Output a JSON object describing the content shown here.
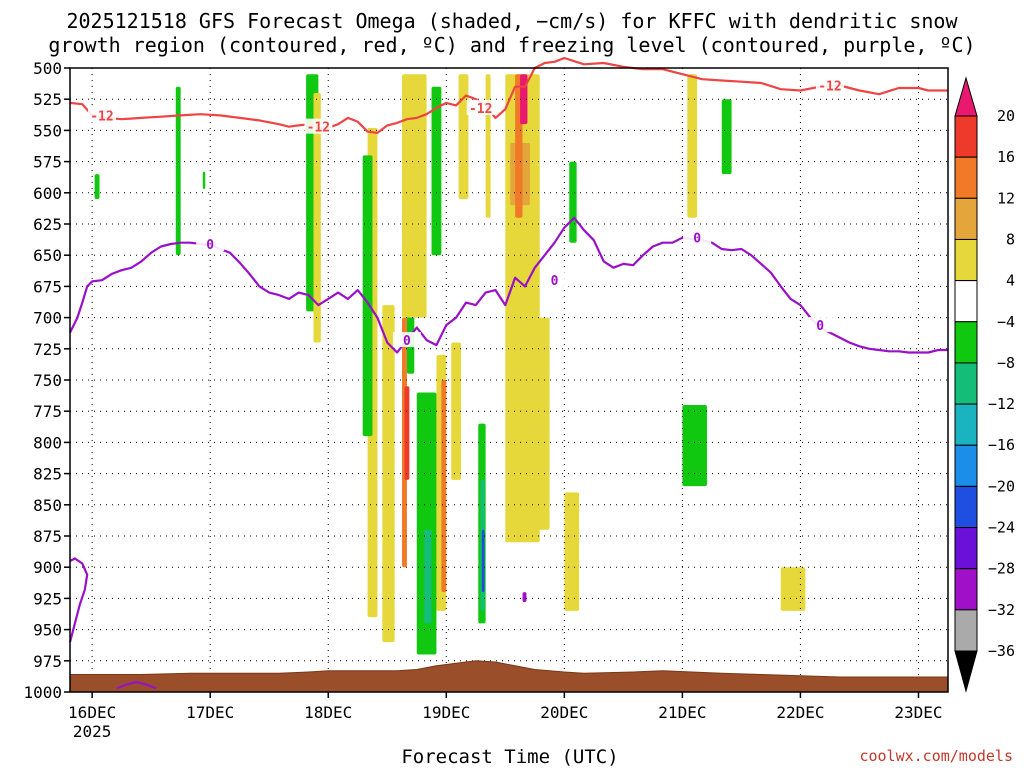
{
  "chart_data": {
    "type": "heatmap",
    "title_lines": [
      "2025121518 GFS Forecast Omega (shaded, −cm/s) for KFFC with dendritic snow",
      "growth region (contoured, red, ºC) and freezing level (contoured, purple, ºC)"
    ],
    "xlabel": "Forecast Time (UTC)",
    "credit": "coolwx.com/models",
    "x_ticks": [
      {
        "label": "16DEC",
        "sub": "2025",
        "t": 0
      },
      {
        "label": "17DEC",
        "t": 24
      },
      {
        "label": "18DEC",
        "t": 48
      },
      {
        "label": "19DEC",
        "t": 72
      },
      {
        "label": "20DEC",
        "t": 96
      },
      {
        "label": "21DEC",
        "t": 120
      },
      {
        "label": "22DEC",
        "t": 144
      },
      {
        "label": "23DEC",
        "t": 168
      }
    ],
    "x_range_hours": [
      -4.5,
      174
    ],
    "y_ticks": [
      500,
      525,
      550,
      575,
      600,
      625,
      650,
      675,
      700,
      725,
      750,
      775,
      800,
      825,
      850,
      875,
      900,
      925,
      950,
      975,
      1000
    ],
    "y_range_hpa": [
      500,
      1000
    ],
    "grid": true,
    "colorbar": {
      "ticks": [
        "20",
        "16",
        "12",
        "8",
        "4",
        "−4",
        "−8",
        "−12",
        "−16",
        "−20",
        "−24",
        "−28",
        "−32",
        "−36"
      ],
      "colors": [
        "#e8196e",
        "#ee3a2a",
        "#f07a28",
        "#e4a53a",
        "#e6d83a",
        "#ffffff",
        "#10c810",
        "#14be78",
        "#19b4c0",
        "#1a8ee8",
        "#1e4fe0",
        "#6a10d8",
        "#a010c8",
        "#aaaaaa"
      ]
    },
    "series": [
      {
        "name": "-12",
        "color": "#ee4444",
        "label": "-12",
        "t": [
          -4.5,
          -2,
          0,
          3,
          6,
          10,
          14,
          18,
          22,
          26,
          30,
          34,
          38,
          40,
          42,
          44,
          46,
          48,
          50,
          52,
          54,
          56,
          58,
          60,
          62,
          64,
          66,
          68,
          70,
          72,
          74,
          76,
          78,
          80,
          82,
          84,
          86,
          88,
          90,
          92,
          94,
          96,
          100,
          104,
          108,
          112,
          116,
          120,
          124,
          128,
          132,
          136,
          140,
          144,
          148,
          152,
          156,
          160,
          164,
          168,
          170,
          174
        ],
        "p": [
          528,
          529,
          538,
          540,
          541,
          540,
          539,
          538,
          537,
          538,
          540,
          542,
          545,
          547,
          546,
          545,
          548,
          548,
          545,
          540,
          543,
          551,
          552,
          546,
          544,
          541,
          540,
          537,
          532,
          528,
          530,
          522,
          525,
          530,
          540,
          533,
          515,
          515,
          500,
          496,
          495,
          492,
          497,
          496,
          499,
          501,
          501,
          505,
          509,
          510,
          511,
          512,
          517,
          518,
          515,
          514,
          518,
          521,
          516,
          516,
          518,
          518
        ]
      },
      {
        "name": "0",
        "color": "#9a10c8",
        "label": "0",
        "t": [
          -4.5,
          -3,
          -2,
          -1,
          0,
          2,
          4,
          6,
          8,
          10,
          12,
          14,
          16,
          18,
          20,
          22,
          24,
          26,
          28,
          30,
          32,
          34,
          36,
          38,
          40,
          42,
          44,
          46,
          48,
          50,
          52,
          54,
          56,
          58,
          60,
          62,
          64,
          66,
          68,
          70,
          72,
          74,
          76,
          78,
          80,
          82,
          84,
          86,
          88,
          90,
          92,
          94,
          96,
          98,
          100,
          102,
          104,
          106,
          108,
          110,
          112,
          114,
          116,
          118,
          120,
          122,
          124,
          126,
          128,
          130,
          132,
          134,
          136,
          138,
          140,
          142,
          144,
          146,
          148,
          150,
          152,
          154,
          156,
          158,
          160,
          162,
          164,
          166,
          168,
          170,
          172,
          174
        ],
        "p": [
          712,
          700,
          688,
          675,
          671,
          670,
          665,
          662,
          660,
          655,
          648,
          643,
          641,
          640,
          640,
          641,
          642,
          645,
          648,
          656,
          665,
          675,
          680,
          682,
          685,
          680,
          682,
          690,
          685,
          680,
          685,
          678,
          688,
          700,
          720,
          728,
          718,
          708,
          718,
          722,
          706,
          700,
          688,
          690,
          680,
          678,
          690,
          668,
          675,
          660,
          650,
          640,
          628,
          620,
          630,
          638,
          655,
          660,
          657,
          658,
          650,
          643,
          640,
          640,
          636,
          637,
          638,
          640,
          645,
          646,
          645,
          650,
          657,
          664,
          675,
          685,
          690,
          700,
          708,
          712,
          716,
          720,
          723,
          725,
          726,
          727,
          727,
          728,
          728,
          728,
          726,
          726
        ]
      },
      {
        "name": "0",
        "color": "#9a10c8",
        "label": "",
        "t": [
          -4.5,
          -3.5,
          -2.5,
          -1.5,
          -1,
          -2,
          -3.5,
          -4.5
        ],
        "p": [
          960,
          945,
          930,
          918,
          906,
          897,
          893,
          895
        ]
      },
      {
        "name": "0",
        "color": "#9a10c8",
        "label": "",
        "t": [
          5,
          7,
          9,
          11,
          13
        ],
        "p": [
          997,
          994,
          992,
          994,
          997
        ]
      }
    ],
    "shaded": [
      {
        "level": "-8",
        "t": [
          17,
          18
        ],
        "p": [
          515,
          650
        ]
      },
      {
        "level": "-8",
        "t": [
          0.5,
          1.5
        ],
        "p": [
          585,
          605
        ]
      },
      {
        "level": "-8",
        "t": [
          22.5,
          23
        ],
        "p": [
          583,
          597
        ]
      },
      {
        "level": "-8",
        "t": [
          43.5,
          46
        ],
        "p": [
          505,
          695
        ]
      },
      {
        "level": "4",
        "t": [
          45,
          46.5
        ],
        "p": [
          520,
          720
        ]
      },
      {
        "level": "4",
        "t": [
          56,
          58
        ],
        "p": [
          548,
          940
        ]
      },
      {
        "level": "-8",
        "t": [
          55,
          57
        ],
        "p": [
          570,
          795
        ]
      },
      {
        "level": "4",
        "t": [
          59,
          61.5
        ],
        "p": [
          690,
          960
        ]
      },
      {
        "level": "-8",
        "t": [
          64,
          65.5
        ],
        "p": [
          580,
          745
        ]
      },
      {
        "level": "12",
        "t": [
          63,
          64
        ],
        "p": [
          700,
          900
        ]
      },
      {
        "level": "16",
        "t": [
          63.5,
          64.5
        ],
        "p": [
          755,
          830
        ]
      },
      {
        "level": "4",
        "t": [
          63,
          68
        ],
        "p": [
          505,
          700
        ]
      },
      {
        "level": "-8",
        "t": [
          66,
          70
        ],
        "p": [
          760,
          970
        ]
      },
      {
        "level": "-12",
        "t": [
          67.5,
          69
        ],
        "p": [
          870,
          945
        ]
      },
      {
        "level": "4",
        "t": [
          70,
          72
        ],
        "p": [
          730,
          935
        ]
      },
      {
        "level": "12",
        "t": [
          71,
          72
        ],
        "p": [
          750,
          920
        ]
      },
      {
        "level": "4",
        "t": [
          73,
          75
        ],
        "p": [
          720,
          830
        ]
      },
      {
        "level": "-8",
        "t": [
          69,
          71
        ],
        "p": [
          515,
          650
        ]
      },
      {
        "level": "4",
        "t": [
          74.5,
          76.5
        ],
        "p": [
          505,
          605
        ]
      },
      {
        "level": "-8",
        "t": [
          78.5,
          80
        ],
        "p": [
          785,
          945
        ]
      },
      {
        "level": "-12",
        "t": [
          79,
          79.8
        ],
        "p": [
          830,
          935
        ]
      },
      {
        "level": "-24",
        "t": [
          79.2,
          79.8
        ],
        "p": [
          870,
          920
        ]
      },
      {
        "level": "4",
        "t": [
          80,
          81
        ],
        "p": [
          505,
          620
        ]
      },
      {
        "level": "4",
        "t": [
          84,
          91
        ],
        "p": [
          505,
          880
        ]
      },
      {
        "level": "8",
        "t": [
          85,
          89
        ],
        "p": [
          560,
          610
        ]
      },
      {
        "level": "12",
        "t": [
          86,
          87.5
        ],
        "p": [
          505,
          620
        ]
      },
      {
        "level": "20",
        "t": [
          87,
          88.5
        ],
        "p": [
          505,
          545
        ]
      },
      {
        "level": "4",
        "t": [
          90,
          93
        ],
        "p": [
          700,
          870
        ]
      },
      {
        "level": "4",
        "t": [
          96,
          99
        ],
        "p": [
          840,
          935
        ]
      },
      {
        "level": "-8",
        "t": [
          97,
          98.5
        ],
        "p": [
          575,
          640
        ]
      },
      {
        "level": "-32",
        "t": [
          87.5,
          88.3
        ],
        "p": [
          920,
          928
        ]
      },
      {
        "level": "4",
        "t": [
          121,
          123
        ],
        "p": [
          505,
          620
        ]
      },
      {
        "level": "-8",
        "t": [
          128,
          130
        ],
        "p": [
          525,
          585
        ]
      },
      {
        "level": "-8",
        "t": [
          120,
          125
        ],
        "p": [
          770,
          835
        ]
      },
      {
        "level": "4",
        "t": [
          140,
          145
        ],
        "p": [
          900,
          935
        ]
      }
    ]
  }
}
